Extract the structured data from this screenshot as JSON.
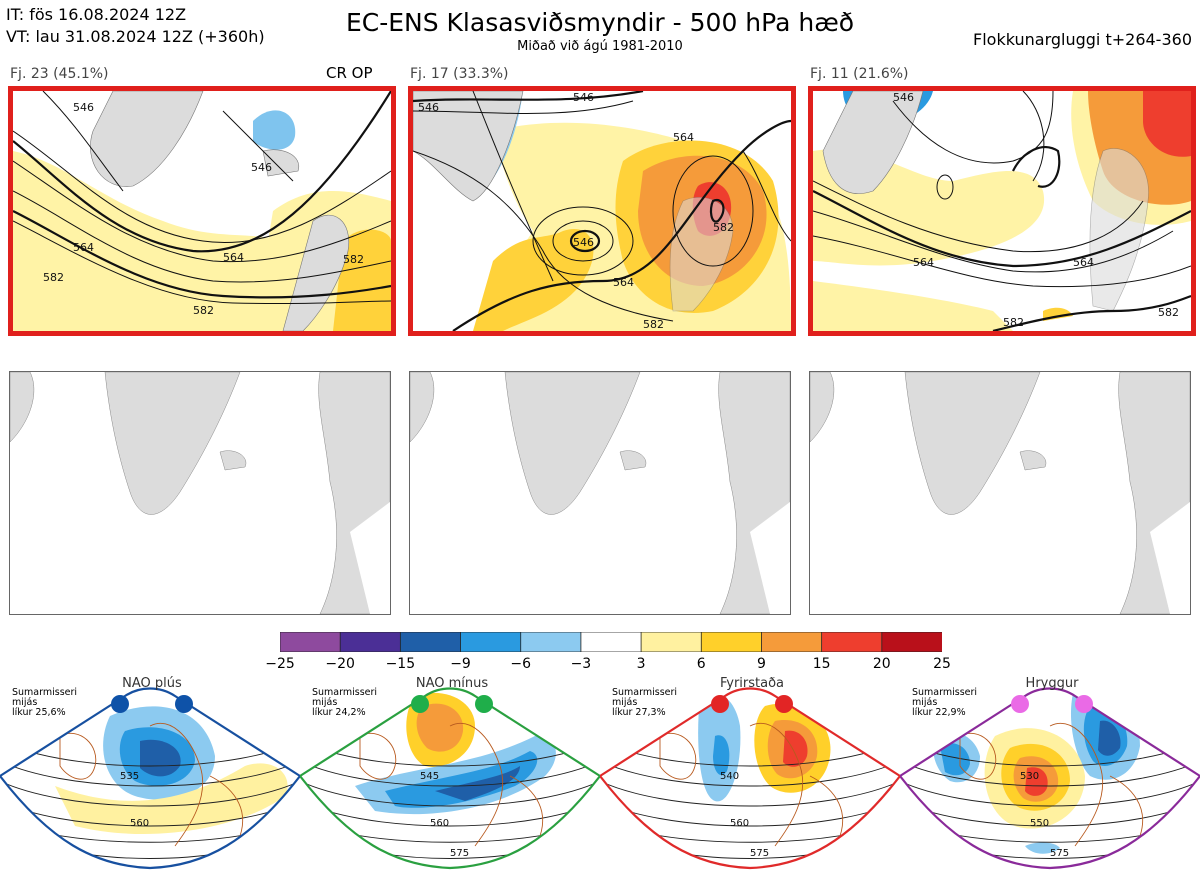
{
  "header": {
    "it_line": "IT: fös 16.08.2024 12Z",
    "vt_line": "VT: lau 31.08.2024 12Z  (+360h)",
    "title": "EC-ENS Klasasviðsmyndir - 500 hPa hæð",
    "subtitle": "Miðað við ágú 1981-2010",
    "window": "Flokkunargluggi t+264-360"
  },
  "clusters": [
    {
      "label": "Fj. 23 (45.1%)",
      "tag": "CR OP",
      "contours": [
        "546",
        "546",
        "564",
        "564",
        "582",
        "582",
        "582"
      ]
    },
    {
      "label": "Fj. 17 (33.3%)",
      "tag": "",
      "contours": [
        "546",
        "546",
        "546",
        "564",
        "564",
        "582",
        "582"
      ]
    },
    {
      "label": "Fj. 11 (21.6%)",
      "tag": "",
      "contours": [
        "546",
        "564",
        "564",
        "582",
        "582"
      ]
    }
  ],
  "colorbar": {
    "ticks": [
      "−25",
      "−20",
      "−15",
      "−9",
      "−6",
      "−3",
      "3",
      "6",
      "9",
      "15",
      "20",
      "25"
    ],
    "colors": [
      "#8e4a9e",
      "#4b2f96",
      "#1f5fa8",
      "#2a9ae0",
      "#8ccaf0",
      "#ffffff",
      "#fff1a0",
      "#ffd02a",
      "#f59b3a",
      "#ee3e2e",
      "#b9101a"
    ]
  },
  "regimes": [
    {
      "name": "NAO plús",
      "season": "Sumarmisseri",
      "meta1": "mijás",
      "prob": "líkur 25,6%",
      "dot_color": "#0e52a8",
      "border_color": "#1750a0",
      "contours": [
        "535",
        "560"
      ]
    },
    {
      "name": "NAO mínus",
      "season": "Sumarmisseri",
      "meta1": "mijás",
      "prob": "líkur 24,2%",
      "dot_color": "#1fae4a",
      "border_color": "#2aa040",
      "contours": [
        "545",
        "560",
        "575"
      ]
    },
    {
      "name": "Fyrirstaða",
      "season": "Sumarmisseri",
      "meta1": "mijás",
      "prob": "líkur 27,3%",
      "dot_color": "#e22525",
      "border_color": "#e02a2a",
      "contours": [
        "540",
        "560",
        "575"
      ]
    },
    {
      "name": "Hryggur",
      "season": "Sumarmisseri",
      "meta1": "mijás",
      "prob": "líkur 22,9%",
      "dot_color": "#ea6ae6",
      "border_color": "#8a2a9a",
      "contours": [
        "530",
        "550",
        "575"
      ]
    }
  ]
}
